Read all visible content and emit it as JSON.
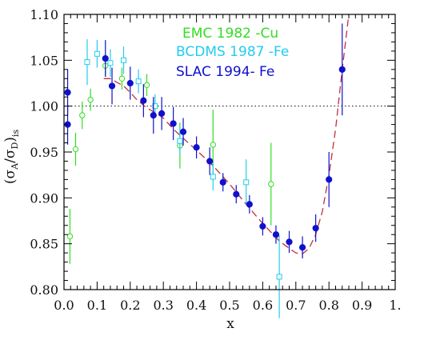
{
  "chart_data": {
    "type": "scatter",
    "title": "",
    "xlabel": "x",
    "ylabel": "(σA/σD)is",
    "ylabel_parts": {
      "open": "(",
      "sigma": "σ",
      "subA": "A",
      "slash": "/",
      "subD": "D",
      "close": ")",
      "sub": "is"
    },
    "xlim": [
      0.0,
      1.0
    ],
    "ylim": [
      0.8,
      1.1
    ],
    "x_ticks": [
      "0.0",
      "0.1",
      "0.2",
      "0.3",
      "0.4",
      "0.5",
      "0.6",
      "0.7",
      "0.8",
      "0.9",
      "1."
    ],
    "y_ticks": [
      "0.80",
      "0.85",
      "0.90",
      "0.95",
      "1.00",
      "1.05",
      "1.10"
    ],
    "reference_line": {
      "y": 1.0,
      "style": "dotted"
    },
    "legend_position": "top-center",
    "series": [
      {
        "name": "EMC 1982 -Cu",
        "color": "#33dd22",
        "marker": "open-circle",
        "points": [
          {
            "x": 0.018,
            "y": 0.858,
            "err": 0.03
          },
          {
            "x": 0.035,
            "y": 0.953,
            "err": 0.018
          },
          {
            "x": 0.055,
            "y": 0.99,
            "err": 0.015
          },
          {
            "x": 0.08,
            "y": 1.007,
            "err": 0.012
          },
          {
            "x": 0.125,
            "y": 1.044,
            "err": 0.012
          },
          {
            "x": 0.175,
            "y": 1.03,
            "err": 0.012
          },
          {
            "x": 0.25,
            "y": 1.023,
            "err": 0.012
          },
          {
            "x": 0.35,
            "y": 0.957,
            "err": 0.025
          },
          {
            "x": 0.45,
            "y": 0.958,
            "err": 0.038
          },
          {
            "x": 0.625,
            "y": 0.915,
            "err": 0.045
          }
        ]
      },
      {
        "name": "BCDMS 1987 -Fe",
        "color": "#22ccee",
        "marker": "open-square",
        "points": [
          {
            "x": 0.07,
            "y": 1.048,
            "err": 0.025
          },
          {
            "x": 0.1,
            "y": 1.057,
            "err": 0.015
          },
          {
            "x": 0.14,
            "y": 1.047,
            "err": 0.015
          },
          {
            "x": 0.18,
            "y": 1.05,
            "err": 0.015
          },
          {
            "x": 0.225,
            "y": 1.027,
            "err": 0.013
          },
          {
            "x": 0.275,
            "y": 1.0,
            "err": 0.013
          },
          {
            "x": 0.35,
            "y": 0.962,
            "err": 0.015
          },
          {
            "x": 0.45,
            "y": 0.923,
            "err": 0.015
          },
          {
            "x": 0.55,
            "y": 0.917,
            "err": 0.025
          },
          {
            "x": 0.65,
            "y": 0.814,
            "err": 0.045
          }
        ]
      },
      {
        "name": "SLAC 1994- Fe",
        "color": "#1010cc",
        "marker": "filled-circle",
        "points": [
          {
            "x": 0.011,
            "y": 1.015,
            "err": 0.025
          },
          {
            "x": 0.011,
            "y": 0.98,
            "err": 0.022
          },
          {
            "x": 0.125,
            "y": 1.052,
            "err": 0.02
          },
          {
            "x": 0.145,
            "y": 1.022,
            "err": 0.02
          },
          {
            "x": 0.2,
            "y": 1.025,
            "err": 0.018
          },
          {
            "x": 0.24,
            "y": 1.006,
            "err": 0.018
          },
          {
            "x": 0.27,
            "y": 0.99,
            "err": 0.02
          },
          {
            "x": 0.295,
            "y": 0.992,
            "err": 0.018
          },
          {
            "x": 0.33,
            "y": 0.981,
            "err": 0.018
          },
          {
            "x": 0.36,
            "y": 0.972,
            "err": 0.015
          },
          {
            "x": 0.4,
            "y": 0.955,
            "err": 0.012
          },
          {
            "x": 0.44,
            "y": 0.94,
            "err": 0.015
          },
          {
            "x": 0.48,
            "y": 0.917,
            "err": 0.01
          },
          {
            "x": 0.52,
            "y": 0.904,
            "err": 0.01
          },
          {
            "x": 0.56,
            "y": 0.893,
            "err": 0.01
          },
          {
            "x": 0.6,
            "y": 0.869,
            "err": 0.01
          },
          {
            "x": 0.64,
            "y": 0.86,
            "err": 0.01
          },
          {
            "x": 0.68,
            "y": 0.852,
            "err": 0.012
          },
          {
            "x": 0.72,
            "y": 0.846,
            "err": 0.012
          },
          {
            "x": 0.76,
            "y": 0.867,
            "err": 0.015
          },
          {
            "x": 0.8,
            "y": 0.92,
            "err": 0.03
          },
          {
            "x": 0.84,
            "y": 1.04,
            "err": 0.05
          }
        ]
      }
    ],
    "fit_curve": {
      "color": "#c03040",
      "style": "dashed",
      "points": [
        [
          0.12,
          1.03
        ],
        [
          0.14,
          1.03
        ],
        [
          0.16,
          1.026
        ],
        [
          0.18,
          1.022
        ],
        [
          0.2,
          1.015
        ],
        [
          0.22,
          1.007
        ],
        [
          0.25,
          0.998
        ],
        [
          0.28,
          0.992
        ],
        [
          0.3,
          0.987
        ],
        [
          0.33,
          0.975
        ],
        [
          0.36,
          0.965
        ],
        [
          0.4,
          0.952
        ],
        [
          0.45,
          0.935
        ],
        [
          0.5,
          0.915
        ],
        [
          0.55,
          0.893
        ],
        [
          0.6,
          0.872
        ],
        [
          0.65,
          0.853
        ],
        [
          0.68,
          0.845
        ],
        [
          0.7,
          0.84
        ],
        [
          0.72,
          0.839
        ],
        [
          0.74,
          0.845
        ],
        [
          0.76,
          0.86
        ],
        [
          0.78,
          0.885
        ],
        [
          0.8,
          0.925
        ],
        [
          0.82,
          0.975
        ],
        [
          0.84,
          1.04
        ],
        [
          0.86,
          1.1
        ]
      ]
    }
  }
}
